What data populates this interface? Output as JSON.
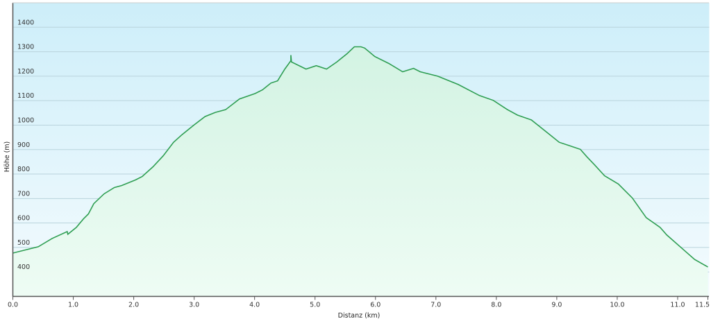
{
  "chart_data": {
    "type": "area",
    "title": "",
    "xlabel": "Distanz  (km)",
    "ylabel": "Höhe (m)",
    "xlim": [
      0,
      11.5
    ],
    "ylim": [
      300,
      1500
    ],
    "grid": true,
    "x_ticks": [
      "0.0",
      "1.0",
      "2.0",
      "3.0",
      "4.0",
      "5.0",
      "6.0",
      "7.0",
      "8.0",
      "9.0",
      "10.0",
      "11.0",
      "11.5"
    ],
    "x_tick_values": [
      0,
      1,
      2,
      3,
      4,
      5,
      6,
      7,
      8,
      9,
      10,
      11,
      11.5
    ],
    "y_ticks": [
      "400",
      "500",
      "600",
      "700",
      "800",
      "900",
      "1000",
      "1100",
      "1200",
      "1300",
      "1400"
    ],
    "y_tick_values": [
      400,
      500,
      600,
      700,
      800,
      900,
      1000,
      1100,
      1200,
      1300,
      1400
    ],
    "colors": {
      "line": "#2e9e52",
      "fill_top": "#d3f3e3",
      "fill_bottom": "#eefcf4",
      "bg_top": "#cdeef9",
      "bg_bottom": "#f4fbfe",
      "grid": "#b9d3dc"
    },
    "series": [
      {
        "x": [
          0,
          0.42,
          0.65,
          0.9,
          0.91,
          1.05,
          1.17,
          1.25,
          1.34,
          1.51,
          1.68,
          1.8,
          2.03,
          2.14,
          2.32,
          2.49,
          2.66,
          2.8,
          3.0,
          3.18,
          3.35,
          3.52,
          3.75,
          4.01,
          4.13,
          4.27,
          4.38,
          4.5,
          4.6,
          4.6,
          4.61,
          4.85,
          5.02,
          5.19,
          5.36,
          5.53,
          5.65,
          5.76,
          5.82,
          5.99,
          6.22,
          6.45,
          6.63,
          6.74,
          7.03,
          7.37,
          7.72,
          7.95,
          8.18,
          8.35,
          8.58,
          8.87,
          9.04,
          9.21,
          9.39,
          9.5,
          9.62,
          9.79,
          10.02,
          10.25,
          10.48,
          10.71,
          10.82,
          11.11,
          11.28,
          11.5
        ],
        "y": [
          477,
          503,
          537,
          565,
          554,
          582,
          617,
          637,
          679,
          719,
          745,
          753,
          776,
          790,
          830,
          875,
          930,
          961,
          1001,
          1035,
          1052,
          1063,
          1107,
          1129,
          1144,
          1172,
          1181,
          1229,
          1263,
          1286,
          1258,
          1229,
          1243,
          1229,
          1258,
          1292,
          1320,
          1320,
          1315,
          1280,
          1252,
          1218,
          1232,
          1218,
          1200,
          1166,
          1121,
          1101,
          1064,
          1041,
          1021,
          964,
          930,
          916,
          901,
          870,
          839,
          793,
          759,
          702,
          622,
          582,
          551,
          488,
          451,
          420
        ]
      }
    ]
  }
}
